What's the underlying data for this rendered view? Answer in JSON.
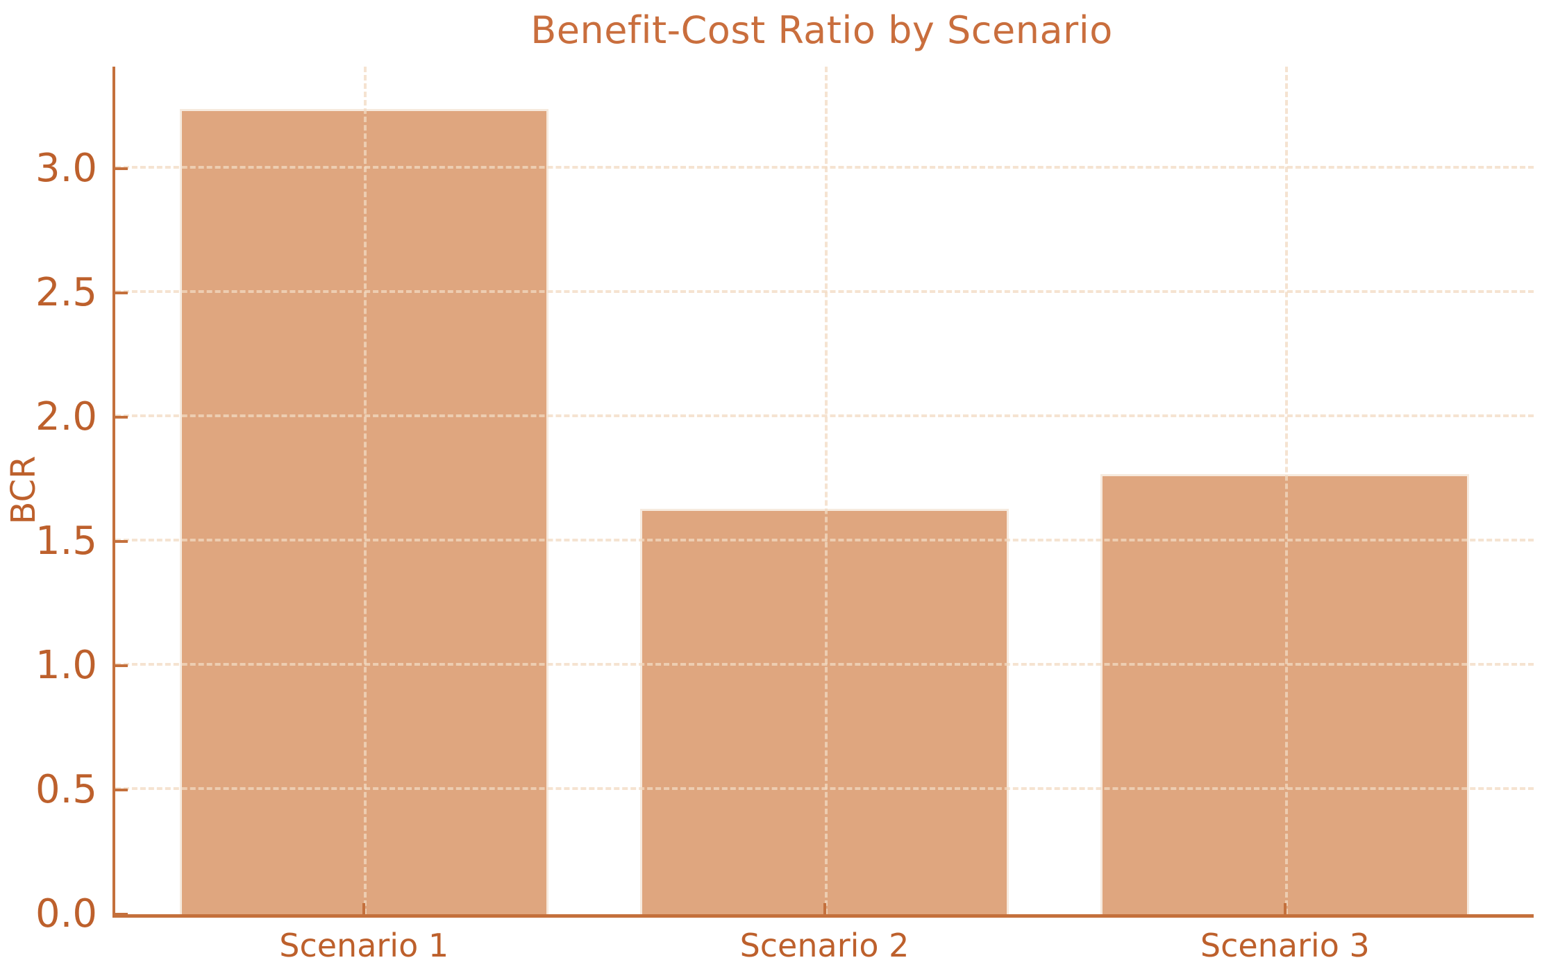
{
  "chart_data": {
    "type": "bar",
    "title": "Benefit-Cost Ratio by Scenario",
    "categories": [
      "Scenario 1",
      "Scenario 2",
      "Scenario 3"
    ],
    "values": [
      3.24,
      1.63,
      1.77
    ],
    "xlabel": "",
    "ylabel": "BCR",
    "ylim": [
      0,
      3.41
    ],
    "xlim": [
      -0.54,
      2.54
    ],
    "bar_width": 0.8,
    "yticks": [
      0.0,
      0.5,
      1.0,
      1.5,
      2.0,
      2.5,
      3.0
    ],
    "ytick_labels": [
      "0.0",
      "0.5",
      "1.0",
      "1.5",
      "2.0",
      "2.5",
      "3.0"
    ],
    "grid": true,
    "grid_style": "dashed",
    "legend": "none",
    "colors": {
      "bar_fill": "#dfa67f",
      "bar_edge": "#f6eade",
      "axis_spine": "#c4703c",
      "tick_text": "#bd602c",
      "title_text": "#c96e3d",
      "gridline": "#f2d9c2",
      "background": "#ffffff"
    }
  }
}
